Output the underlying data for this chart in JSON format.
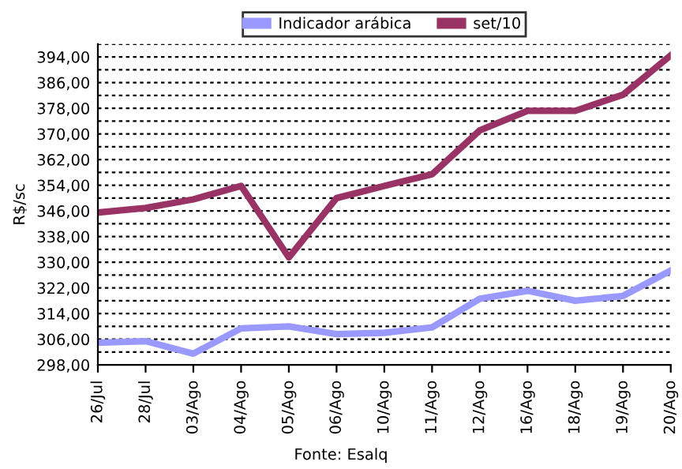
{
  "chart_data": {
    "type": "line",
    "ylabel": "R$/sc",
    "annotations": [
      "Fonte: Esalq"
    ],
    "categories": [
      "26/Jul",
      "28/Jul",
      "03/Ago",
      "04/Ago",
      "05/Ago",
      "06/Ago",
      "10/Ago",
      "11/Ago",
      "12/Ago",
      "16/Ago",
      "18/Ago",
      "19/Ago",
      "20/Ago"
    ],
    "series": [
      {
        "name": "Indicador arábica",
        "color": "#9999ff",
        "values": [
          304.9,
          305.4,
          301.5,
          309.4,
          310.0,
          307.6,
          308.0,
          309.7,
          318.6,
          321.1,
          318.0,
          319.5,
          327.4
        ]
      },
      {
        "name": "set/10",
        "color": "#993366",
        "values": [
          345.5,
          346.9,
          349.6,
          353.8,
          331.5,
          350.0,
          353.8,
          357.4,
          371.1,
          377.2,
          377.2,
          382.2,
          394.5
        ]
      }
    ],
    "ylim": [
      298,
      398
    ],
    "yticks": [
      {
        "value": 298,
        "label": "298,00"
      },
      {
        "value": 302,
        "label": null
      },
      {
        "value": 306,
        "label": "306,00"
      },
      {
        "value": 310,
        "label": null
      },
      {
        "value": 314,
        "label": "314,00"
      },
      {
        "value": 318,
        "label": null
      },
      {
        "value": 322,
        "label": "322,00"
      },
      {
        "value": 326,
        "label": null
      },
      {
        "value": 330,
        "label": "330,00"
      },
      {
        "value": 334,
        "label": null
      },
      {
        "value": 338,
        "label": "338,00"
      },
      {
        "value": 342,
        "label": null
      },
      {
        "value": 346,
        "label": "346,00"
      },
      {
        "value": 350,
        "label": null
      },
      {
        "value": 354,
        "label": "354,00"
      },
      {
        "value": 358,
        "label": null
      },
      {
        "value": 362,
        "label": "362,00"
      },
      {
        "value": 366,
        "label": null
      },
      {
        "value": 370,
        "label": "370,00"
      },
      {
        "value": 374,
        "label": null
      },
      {
        "value": 378,
        "label": "378,00"
      },
      {
        "value": 382,
        "label": null
      },
      {
        "value": 386,
        "label": "386,00"
      },
      {
        "value": 390,
        "label": null
      },
      {
        "value": 394,
        "label": "394,00"
      },
      {
        "value": 398,
        "label": null
      }
    ],
    "grid": "y",
    "legend": "top",
    "marker": "none",
    "line_style": "solid"
  }
}
